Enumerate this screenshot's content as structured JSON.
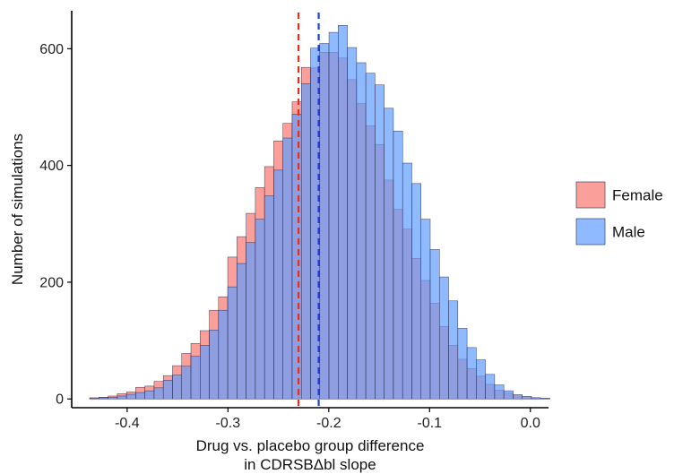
{
  "chart_data": {
    "type": "bar",
    "subtype": "overlapping-histogram",
    "xlabel": [
      "Drug vs. placebo group difference",
      "in CDRSBΔbl slope"
    ],
    "ylabel": "Number of simulations",
    "xlim": [
      -0.455,
      0.018
    ],
    "ylim": [
      -15,
      665
    ],
    "x_ticks": [
      {
        "value": -0.4,
        "label": "-0.4"
      },
      {
        "value": -0.3,
        "label": "-0.3"
      },
      {
        "value": -0.2,
        "label": "-0.2"
      },
      {
        "value": -0.1,
        "label": "-0.1"
      },
      {
        "value": 0.0,
        "label": "0.0"
      }
    ],
    "y_ticks": [
      {
        "value": 0,
        "label": "0"
      },
      {
        "value": 200,
        "label": "200"
      },
      {
        "value": 400,
        "label": "400"
      },
      {
        "value": 600,
        "label": "600"
      }
    ],
    "grid": false,
    "legend_position": "right",
    "bin_start": -0.4463,
    "bin_width": 0.00913,
    "series": [
      {
        "name": "Female",
        "fill": "#F8766D",
        "opacity": 0.7,
        "mean_line_x": -0.23,
        "line_color": "#E03020",
        "values": [
          0,
          2,
          3,
          5,
          9,
          12,
          20,
          22,
          30,
          40,
          57,
          78,
          95,
          117,
          152,
          175,
          243,
          278,
          318,
          362,
          398,
          442,
          472,
          509,
          568,
          567,
          594,
          594,
          584,
          547,
          506,
          468,
          436,
          375,
          325,
          291,
          241,
          203,
          164,
          124,
          92,
          68,
          52,
          39,
          25,
          15,
          10,
          7,
          4,
          2,
          1,
          0
        ]
      },
      {
        "name": "Male",
        "fill": "#619CFF",
        "opacity": 0.7,
        "mean_line_x": -0.21,
        "line_color": "#1F3FE0",
        "values": [
          0,
          1,
          2,
          3,
          5,
          8,
          11,
          14,
          19,
          32,
          41,
          56,
          73,
          92,
          118,
          152,
          192,
          232,
          268,
          308,
          348,
          392,
          447,
          488,
          540,
          601,
          609,
          628,
          640,
          602,
          576,
          558,
          538,
          498,
          459,
          404,
          369,
          308,
          256,
          209,
          168,
          121,
          88,
          67,
          42,
          24,
          14,
          7,
          4,
          2,
          1,
          0
        ]
      }
    ]
  }
}
